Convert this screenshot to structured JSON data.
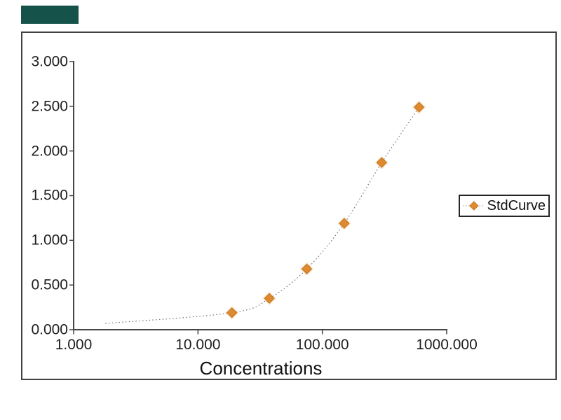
{
  "page": {
    "background": "#ffffff"
  },
  "brand_block": {
    "color": "#14524A"
  },
  "chart_data": {
    "type": "line",
    "title": "",
    "xlabel": "Concentrations",
    "ylabel": "",
    "x_scale": "log",
    "x_range": [
      1,
      1000
    ],
    "y_range": [
      0,
      3
    ],
    "grid": false,
    "x_tick_labels": [
      "1.000",
      "10.000",
      "100.000",
      "1000.000"
    ],
    "x_tick_values": [
      1,
      10,
      100,
      1000
    ],
    "y_tick_labels": [
      "0.000",
      "0.500",
      "1.000",
      "1.500",
      "2.000",
      "2.500",
      "3.000"
    ],
    "y_tick_values": [
      0,
      0.5,
      1,
      1.5,
      2,
      2.5,
      3
    ],
    "series": [
      {
        "name": "StdCurve",
        "marker": "diamond",
        "marker_color": "#DF8A2E",
        "marker_edge_color": "#C0701F",
        "marker_halo_color": "#F2BE7A",
        "line_style": "dotted",
        "line_color": "#787878",
        "x": [
          18.75,
          37.5,
          75,
          150,
          300,
          600
        ],
        "y": [
          0.19,
          0.35,
          0.68,
          1.19,
          1.87,
          2.49
        ],
        "curve_start": {
          "x": 1.8,
          "y": 0.07
        }
      }
    ],
    "legend": {
      "label": "StdCurve",
      "position": "right-middle"
    },
    "axis_color": "#454545"
  }
}
